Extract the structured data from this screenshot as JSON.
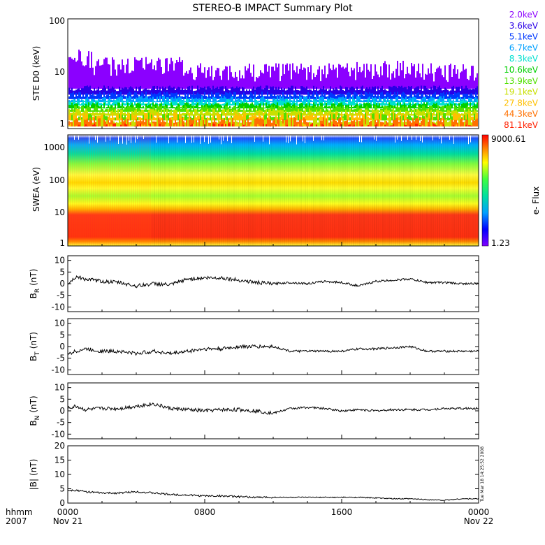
{
  "title": "STEREO-B IMPACT Summary Plot",
  "colors": {
    "ste_channels": [
      "#8b00ff",
      "#2a00e6",
      "#0038ff",
      "#00a0ff",
      "#00e0d0",
      "#00d000",
      "#50e000",
      "#c8e000",
      "#ffc000",
      "#ff7000",
      "#ff2000"
    ],
    "line": "#000000"
  },
  "footer": {
    "hhmm_label": "hhmm",
    "year_label": "2007",
    "start_date": "Nov 21",
    "end_date": "Nov 22",
    "timestamp": "Tue Mar 18 14:25:52 2008"
  },
  "chart_data": [
    {
      "type": "area",
      "name": "ste",
      "ylabel": "STE D0 (keV)",
      "y_scale": "log",
      "ylim": [
        1,
        100
      ],
      "y_ticks": [
        "1",
        "10",
        "100"
      ],
      "channels": [
        "2.0keV",
        "3.6keV",
        "5.1keV",
        "6.7keV",
        "8.3keV",
        "10.6keV",
        "13.9keV",
        "19.1keV",
        "27.8keV",
        "44.3keV",
        "81.1keV"
      ],
      "legend_position": "right"
    },
    {
      "type": "heatmap",
      "name": "swea",
      "ylabel": "SWEA (eV)",
      "y_scale": "log",
      "ylim": [
        1,
        2000
      ],
      "y_ticks": [
        "1",
        "10",
        "100",
        "1000"
      ],
      "colorbar_label": "e- Flux",
      "colorbar_max": "9000.61",
      "colorbar_min": "1.23"
    },
    {
      "type": "line",
      "name": "br",
      "ylabel": "B",
      "ylabel_sub": "R",
      "yunit": "(nT)",
      "ylim": [
        -12,
        12
      ],
      "y_ticks": [
        "10",
        "5",
        "0",
        "-5",
        "-10"
      ],
      "x": [
        0,
        0.5,
        1,
        2,
        3,
        4,
        5,
        6,
        7,
        8,
        9,
        10,
        11,
        12,
        13,
        14,
        15,
        16,
        17,
        18,
        19,
        20,
        21,
        22,
        23,
        24
      ],
      "y": [
        0,
        3,
        2,
        1,
        0.5,
        -1,
        0,
        -0.5,
        2,
        2.5,
        2.5,
        1.5,
        0.5,
        0,
        0.5,
        0,
        1,
        0.5,
        -1,
        1,
        1.5,
        2,
        0.5,
        0.5,
        0,
        0
      ]
    },
    {
      "type": "line",
      "name": "bt",
      "ylabel": "B",
      "ylabel_sub": "T",
      "yunit": "(nT)",
      "ylim": [
        -12,
        12
      ],
      "y_ticks": [
        "10",
        "5",
        "0",
        "-5",
        "-10"
      ],
      "x": [
        0,
        0.5,
        1,
        2,
        3,
        4,
        5,
        6,
        7,
        8,
        9,
        10,
        11,
        12,
        13,
        14,
        15,
        16,
        17,
        18,
        19,
        20,
        21,
        22,
        23,
        24
      ],
      "y": [
        -3,
        -2,
        -1,
        -2,
        -2,
        -3,
        -2,
        -3,
        -2,
        -1,
        -1,
        0,
        0,
        0,
        -2,
        -2,
        -2,
        -2,
        -1,
        -1,
        -0.5,
        0,
        -2,
        -2,
        -2,
        -2
      ]
    },
    {
      "type": "line",
      "name": "bn",
      "ylabel": "B",
      "ylabel_sub": "N",
      "yunit": "(nT)",
      "ylim": [
        -12,
        12
      ],
      "y_ticks": [
        "10",
        "5",
        "0",
        "-5",
        "-10"
      ],
      "x": [
        0,
        0.5,
        1,
        2,
        3,
        4,
        5,
        6,
        7,
        8,
        9,
        10,
        11,
        12,
        13,
        14,
        15,
        16,
        17,
        18,
        19,
        20,
        21,
        22,
        23,
        24
      ],
      "y": [
        1,
        2,
        0.5,
        1,
        1,
        2,
        3,
        1,
        0.5,
        0,
        0.5,
        0.5,
        0,
        -1,
        1,
        1.5,
        1,
        0,
        0.5,
        0,
        0.5,
        0.5,
        0.5,
        1,
        1,
        1
      ]
    },
    {
      "type": "line",
      "name": "bmag",
      "ylabel": "|B|",
      "yunit": "(nT)",
      "ylim": [
        0,
        20
      ],
      "y_ticks": [
        "20",
        "15",
        "10",
        "5",
        "0"
      ],
      "x": [
        0,
        0.5,
        1,
        2,
        3,
        4,
        5,
        6,
        7,
        8,
        9,
        10,
        11,
        12,
        13,
        14,
        15,
        16,
        17,
        18,
        19,
        20,
        21,
        22,
        23,
        24
      ],
      "y": [
        4.5,
        4.5,
        4,
        3.5,
        3.5,
        4,
        3.5,
        3,
        2.8,
        2.5,
        2.5,
        2.2,
        2,
        2,
        2,
        2,
        2,
        2,
        2,
        1.8,
        1.5,
        1.5,
        1.2,
        1,
        1.5,
        1.5
      ]
    }
  ],
  "x_axis": {
    "ticks": [
      "0000",
      "0800",
      "1600",
      "0000"
    ]
  }
}
